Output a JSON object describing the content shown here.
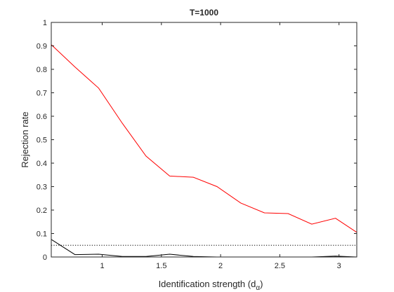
{
  "chart_data": {
    "type": "line",
    "title": "T=1000",
    "xlabel_main": "Identification strength (d",
    "xlabel_sub": "α",
    "xlabel_close": ")",
    "ylabel": "Rejection rate",
    "xlim": [
      0.57,
      3.15
    ],
    "ylim": [
      0,
      1
    ],
    "xticks": [
      1,
      1.5,
      2,
      2.5,
      3
    ],
    "xtick_labels": [
      "1",
      "1.5",
      "2",
      "2.5",
      "3"
    ],
    "yticks": [
      0,
      0.1,
      0.2,
      0.3,
      0.4,
      0.5,
      0.6,
      0.7,
      0.8,
      0.9,
      1
    ],
    "ytick_labels": [
      "0",
      "0.1",
      "0.2",
      "0.3",
      "0.4",
      "0.5",
      "0.6",
      "0.7",
      "0.8",
      "0.9",
      "1"
    ],
    "grid": false,
    "series": [
      {
        "color": "#ff0000",
        "style": "solid",
        "x": [
          0.57,
          0.77,
          0.97,
          1.17,
          1.37,
          1.57,
          1.77,
          1.97,
          2.17,
          2.37,
          2.57,
          2.77,
          2.97,
          3.15
        ],
        "y": [
          0.905,
          0.81,
          0.72,
          0.57,
          0.43,
          0.345,
          0.34,
          0.3,
          0.23,
          0.188,
          0.185,
          0.14,
          0.165,
          0.105
        ]
      },
      {
        "color": "#000000",
        "style": "solid",
        "x": [
          0.57,
          0.77,
          0.97,
          1.17,
          1.37,
          1.57,
          1.77,
          1.97,
          2.17,
          2.37,
          2.57,
          2.77,
          2.97,
          3.15
        ],
        "y": [
          0.075,
          0.01,
          0.012,
          0.002,
          0.002,
          0.012,
          0.002,
          0.0,
          0.0,
          0.0,
          0.0,
          0.0,
          0.004,
          0.0
        ]
      },
      {
        "color": "#000000",
        "style": "dotted",
        "x": [
          0.57,
          3.15
        ],
        "y": [
          0.05,
          0.05
        ]
      }
    ]
  }
}
